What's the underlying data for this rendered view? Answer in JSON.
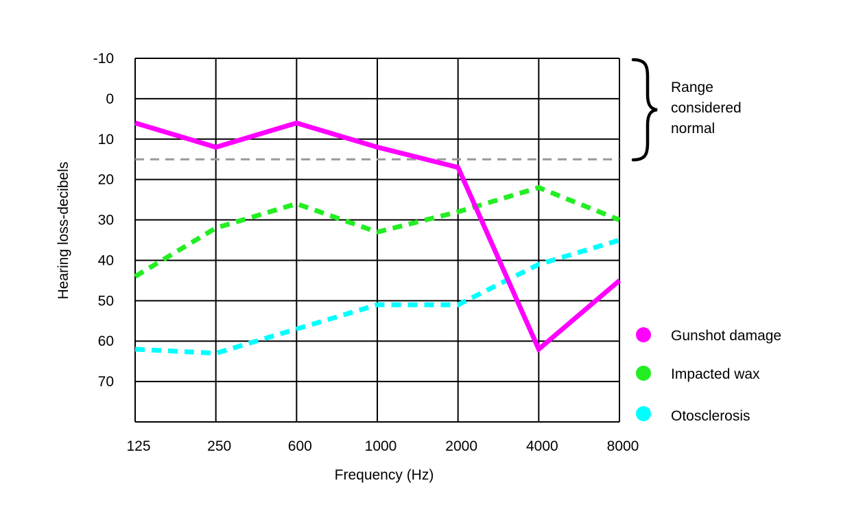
{
  "chart_data": {
    "type": "line",
    "xlabel": "Frequency (Hz)",
    "ylabel": "Hearing loss-decibels",
    "categories": [
      "125",
      "250",
      "600",
      "1000",
      "2000",
      "4000",
      "8000"
    ],
    "y_ticks": [
      "-10",
      "0",
      "10",
      "20",
      "30",
      "40",
      "50",
      "60",
      "70"
    ],
    "ylim": [
      -10,
      80
    ],
    "y_inverted": true,
    "grid": true,
    "normal_threshold": 15,
    "normal_range_label": [
      "Range",
      "considered",
      "normal"
    ],
    "legend_position": "right",
    "series": [
      {
        "name": "Gunshot damage",
        "color": "#ff00ff",
        "style": "solid",
        "values": [
          6,
          12,
          6,
          12,
          17,
          62,
          45
        ]
      },
      {
        "name": "Impacted wax",
        "color": "#22ee22",
        "style": "dashed",
        "values": [
          44,
          32,
          26,
          33,
          28,
          22,
          30
        ]
      },
      {
        "name": "Otosclerosis",
        "color": "#00ffff",
        "style": "dashed",
        "values": [
          62,
          63,
          57,
          51,
          51,
          41,
          35
        ]
      }
    ],
    "threshold_color": "#999999"
  }
}
